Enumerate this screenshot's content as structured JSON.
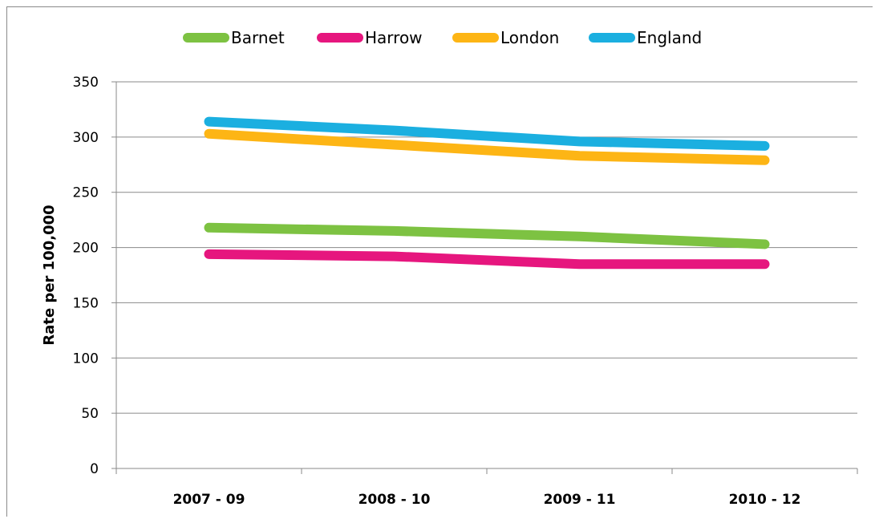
{
  "chart_data": {
    "type": "line",
    "title": "",
    "xlabel": "",
    "ylabel": "Rate per 100,000",
    "ylim": [
      0,
      350
    ],
    "yticks": [
      0,
      50,
      100,
      150,
      200,
      250,
      300,
      350
    ],
    "grid": true,
    "legend_position": "top",
    "categories": [
      "2007 - 09",
      "2008 - 10",
      "2009 - 11",
      "2010 - 12"
    ],
    "series": [
      {
        "name": "Barnet",
        "color": "#7dc242",
        "values": [
          218,
          215,
          210,
          203
        ]
      },
      {
        "name": "Harrow",
        "color": "#e6167e",
        "values": [
          194,
          192,
          185,
          185
        ]
      },
      {
        "name": "London",
        "color": "#fdb515",
        "values": [
          303,
          293,
          283,
          279
        ]
      },
      {
        "name": "England",
        "color": "#1bafe0",
        "values": [
          314,
          306,
          296,
          292
        ]
      }
    ]
  }
}
